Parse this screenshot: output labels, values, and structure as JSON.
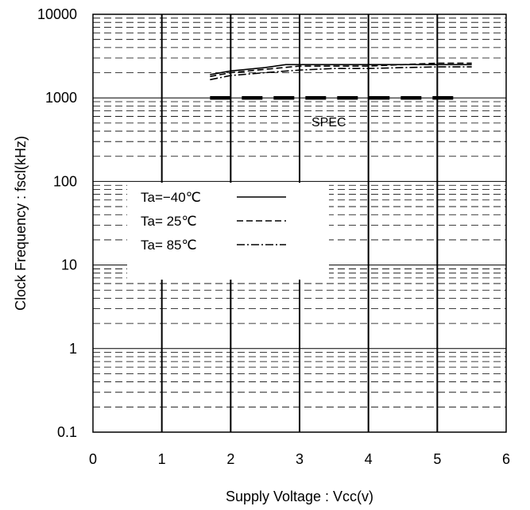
{
  "chart_data": {
    "type": "line",
    "title": "",
    "xlabel": "Supply Voltage : Vcc(v)",
    "ylabel": "Clock Frequency : fscl(kHz)",
    "xlim": [
      0,
      6
    ],
    "ylim": [
      0.1,
      10000
    ],
    "yscale": "log",
    "grid": true,
    "x_ticks": [
      "0",
      "1",
      "2",
      "3",
      "4",
      "5",
      "6"
    ],
    "y_ticks": [
      "0.1",
      "1",
      "10",
      "100",
      "1000",
      "10000"
    ],
    "legend_position": "center-left",
    "series": [
      {
        "name": "Ta=−40℃",
        "style": "solid",
        "x": [
          1.7,
          2.0,
          2.5,
          2.8,
          3.0,
          3.5,
          4.0,
          4.5,
          5.0,
          5.5
        ],
        "y": [
          1900,
          2100,
          2300,
          2500,
          2500,
          2500,
          2500,
          2500,
          2500,
          2500
        ]
      },
      {
        "name": "Ta= 25℃",
        "style": "dashed",
        "x": [
          1.7,
          2.0,
          2.5,
          3.0,
          3.5,
          4.0,
          4.5,
          5.0,
          5.5
        ],
        "y": [
          1800,
          2000,
          2200,
          2400,
          2400,
          2400,
          2500,
          2600,
          2600
        ]
      },
      {
        "name": "Ta= 85℃",
        "style": "dashdot",
        "x": [
          1.7,
          2.0,
          2.5,
          3.0,
          3.5,
          4.0,
          4.5,
          5.0,
          5.5
        ],
        "y": [
          1650,
          1850,
          2000,
          2150,
          2250,
          2250,
          2300,
          2350,
          2350
        ]
      }
    ],
    "spec": {
      "label": "SPEC",
      "x": [
        1.7,
        5.3
      ],
      "y": 1000
    }
  }
}
